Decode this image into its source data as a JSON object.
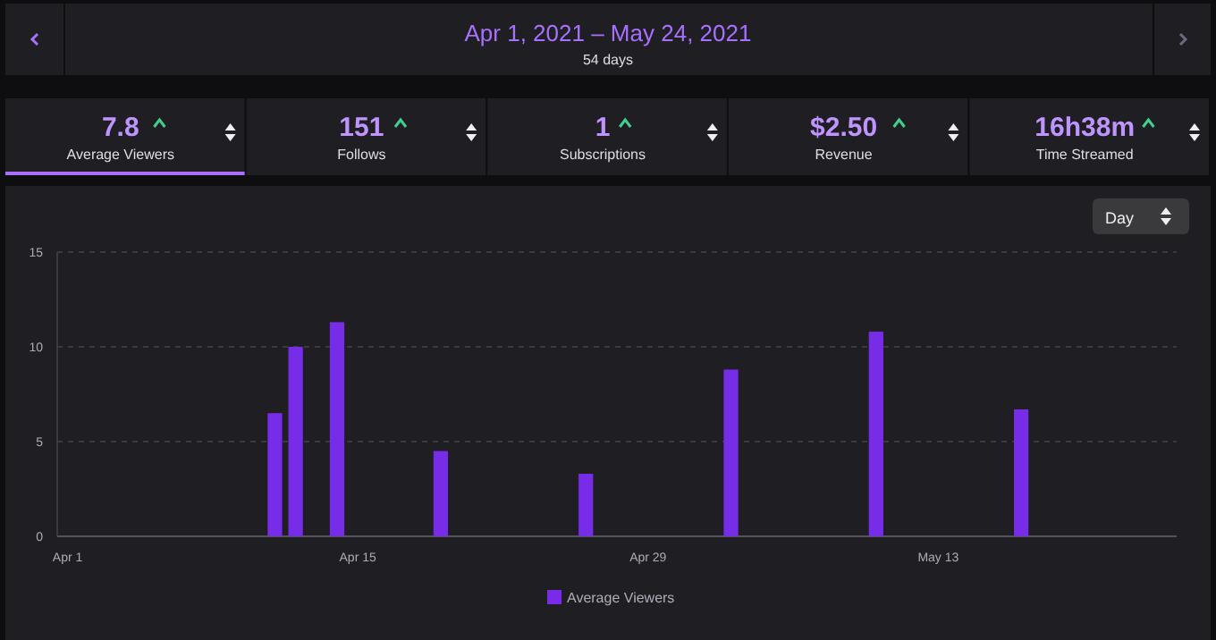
{
  "chart_data": {
    "type": "bar",
    "title": "Apr 1, 2021 – May 24, 2021",
    "subtitle": "54 days",
    "annotations": [
      "7.8",
      "Average Viewers",
      "151",
      "Follows",
      "1",
      "Subscriptions",
      "$2.50",
      "Revenue",
      "16h38m",
      "Time Streamed",
      "Day"
    ],
    "x": [
      "2021-04-11",
      "2021-04-12",
      "2021-04-14",
      "2021-04-19",
      "2021-04-26",
      "2021-05-03",
      "2021-05-10",
      "2021-05-17"
    ],
    "series": [
      {
        "name": "Average Viewers",
        "color": "#772ce8",
        "values": [
          6.5,
          10,
          11.3,
          4.5,
          3.3,
          8.8,
          10.8,
          6.7
        ]
      }
    ],
    "xlim": [
      "2021-03-31T12:00",
      "2021-05-24T12:00"
    ],
    "xticks": [
      {
        "value": "2021-04-01",
        "label": "Apr 1"
      },
      {
        "value": "2021-04-15",
        "label": "Apr 15"
      },
      {
        "value": "2021-04-29",
        "label": "Apr 29"
      },
      {
        "value": "2021-05-13",
        "label": "May 13"
      }
    ],
    "ylim": [
      0,
      15
    ],
    "yticks": [
      0,
      5,
      10,
      15
    ],
    "grid": "y",
    "legend": "bottom"
  }
}
